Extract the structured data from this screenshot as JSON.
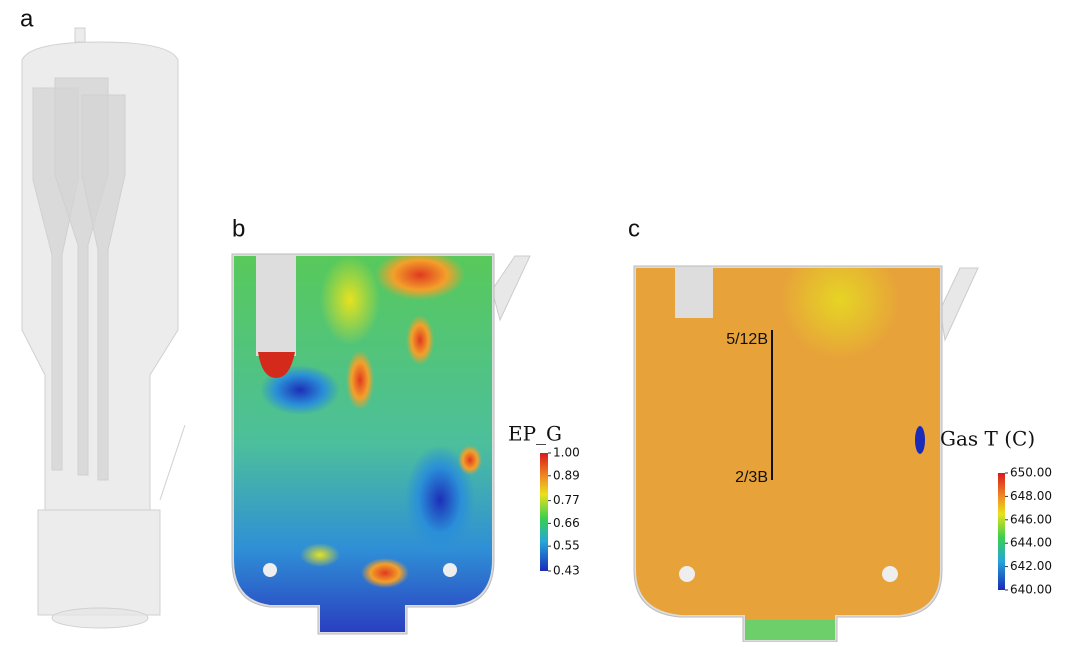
{
  "panels": [
    {
      "label": "a"
    },
    {
      "label": "b",
      "colorbar": {
        "title": "EP_G",
        "ticks": [
          {
            "value": 1,
            "label": "1.00"
          },
          {
            "value": 0.89,
            "label": "0.89"
          },
          {
            "value": 0.77,
            "label": "0.77"
          },
          {
            "value": 0.66,
            "label": "0.66"
          },
          {
            "value": 0.55,
            "label": "0.55"
          },
          {
            "value": 0.43,
            "label": "0.43"
          }
        ]
      }
    },
    {
      "label": "c",
      "annotations": [
        "5/12B",
        "2/3B"
      ],
      "colorbar": {
        "title": "Gas T (C)",
        "ticks": [
          {
            "value": 650,
            "label": "650.00"
          },
          {
            "value": 648,
            "label": "648.00"
          },
          {
            "value": 646,
            "label": "646.00"
          },
          {
            "value": 644,
            "label": "644.00"
          },
          {
            "value": 642,
            "label": "642.00"
          },
          {
            "value": 640,
            "label": "640.00"
          }
        ]
      }
    }
  ]
}
